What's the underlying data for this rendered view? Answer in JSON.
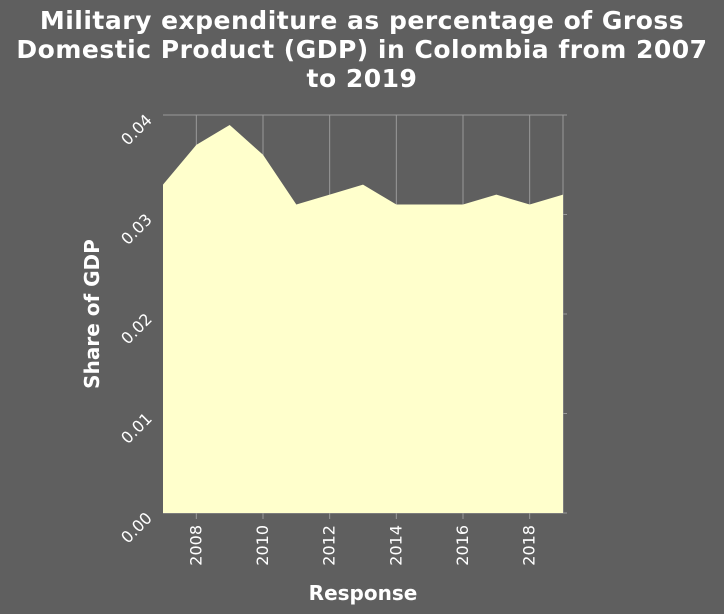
{
  "colors": {
    "background": "#5f5f5f",
    "area_fill": "#ffffcc",
    "gridline": "#9a9a9a",
    "text": "#ffffff"
  },
  "chart_data": {
    "type": "area",
    "title_lines": [
      "Military expenditure as percentage of Gross",
      "Domestic Product (GDP) in Colombia from 2007",
      "to 2019"
    ],
    "xlabel": "Response",
    "ylabel": "Share of GDP",
    "x": [
      2007,
      2008,
      2009,
      2010,
      2011,
      2012,
      2013,
      2014,
      2015,
      2016,
      2017,
      2018,
      2019
    ],
    "values": [
      0.033,
      0.037,
      0.039,
      0.036,
      0.031,
      0.032,
      0.033,
      0.031,
      0.031,
      0.031,
      0.032,
      0.031,
      0.032
    ],
    "xlim": [
      2007,
      2019
    ],
    "ylim": [
      0,
      0.04
    ],
    "x_ticks": [
      2008,
      2010,
      2012,
      2014,
      2016,
      2018
    ],
    "x_tick_labels": [
      "2008",
      "2010",
      "2012",
      "2014",
      "2016",
      "2018"
    ],
    "y_ticks": [
      0,
      0.01,
      0.02,
      0.03,
      0.04
    ],
    "y_tick_labels": [
      "0.00",
      "0.01",
      "0.02",
      "0.03",
      "0.04"
    ],
    "grid": true,
    "legend": "none"
  }
}
